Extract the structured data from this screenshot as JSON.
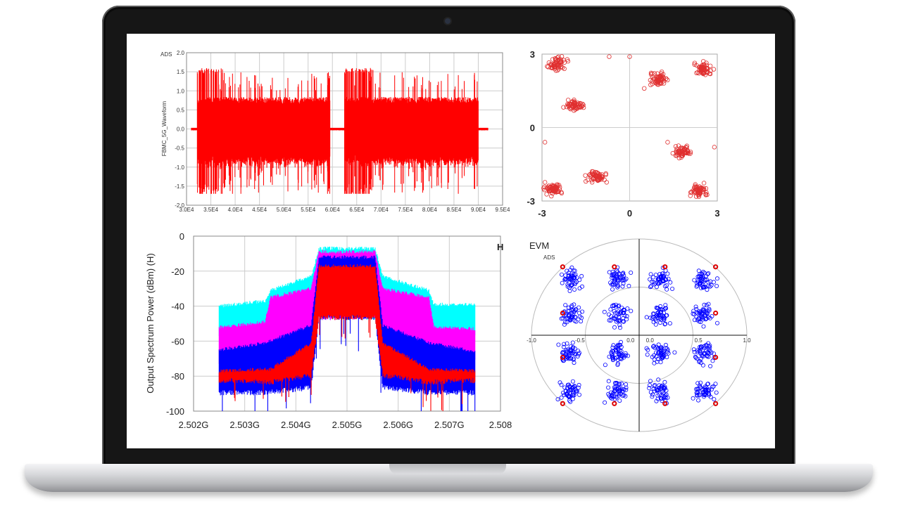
{
  "device": {
    "type": "laptop"
  },
  "chart_data": [
    {
      "type": "line",
      "watermark": "ADS",
      "ylabel": "FBMC_5G_Waveform",
      "xlabel": "",
      "xlim": [
        30000,
        95000
      ],
      "ylim": [
        -2.0,
        2.0
      ],
      "x_ticks": [
        "3.0E4",
        "3.5E4",
        "4.0E4",
        "4.5E4",
        "5.0E4",
        "5.5E4",
        "6.0E4",
        "6.5E4",
        "7.0E4",
        "7.5E4",
        "8.0E4",
        "8.5E4",
        "9.0E4",
        "9.5E4"
      ],
      "y_ticks": [
        "2.0",
        "1.5",
        "1.0",
        "0.5",
        "0.0",
        "-0.5",
        "-1.0",
        "-1.5",
        "-2.0"
      ],
      "grid": true,
      "color": "#ff0000",
      "bursts": [
        [
          32200,
          59500
        ],
        [
          62500,
          90000
        ]
      ],
      "typical_amplitude": 0.8,
      "peak_max": 1.6,
      "peak_min": -1.7,
      "idle_range": [
        31000,
        92000
      ]
    },
    {
      "type": "scatter",
      "xlim": [
        -3,
        3
      ],
      "ylim": [
        -3,
        3
      ],
      "x_ticks": [
        "-3",
        "0",
        "3"
      ],
      "y_ticks": [
        "3",
        "0",
        "-3"
      ],
      "color": "#e03030",
      "marker": "circle-open",
      "clusters": [
        [
          -2.5,
          2.6
        ],
        [
          -1.9,
          0.95
        ],
        [
          1.0,
          2.0
        ],
        [
          2.55,
          2.4
        ],
        [
          1.8,
          -1.0
        ],
        [
          2.4,
          -2.6
        ],
        [
          -1.1,
          -2.0
        ],
        [
          -2.6,
          -2.5
        ]
      ],
      "outliers": [
        [
          -0.7,
          2.9
        ],
        [
          0,
          2.9
        ],
        [
          2.9,
          -0.8
        ],
        [
          -2.9,
          -0.6
        ],
        [
          -1.5,
          -2.2
        ],
        [
          0.5,
          1.6
        ],
        [
          1.3,
          -0.6
        ]
      ]
    },
    {
      "type": "area",
      "ylabel": "Output Spectrum Power (dBm)  (H)",
      "xlabel": "",
      "marker_label": "H",
      "marker_color": "#33cc33",
      "xlim": [
        2.502,
        2.508
      ],
      "ylim": [
        -100,
        0
      ],
      "x_ticks": [
        "2.502G",
        "2.503G",
        "2.504G",
        "2.505G",
        "2.506G",
        "2.507G",
        "2.508"
      ],
      "y_ticks": [
        "0",
        "-20",
        "-40",
        "-60",
        "-80",
        "-100"
      ],
      "grid": true,
      "series": [
        {
          "color": "#00ffff",
          "envelope": [
            [
              2.5025,
              -41,
              -55
            ],
            [
              2.5034,
              -38,
              -55
            ],
            [
              2.5035,
              -32,
              -55
            ],
            [
              2.5043,
              -24,
              -50
            ],
            [
              2.50445,
              -8,
              -45
            ],
            [
              2.50555,
              -8,
              -45
            ],
            [
              2.5057,
              -24,
              -50
            ],
            [
              2.5066,
              -32,
              -55
            ],
            [
              2.5067,
              -40,
              -55
            ],
            [
              2.5075,
              -40,
              -55
            ]
          ]
        },
        {
          "color": "#ff00ff",
          "envelope": [
            [
              2.5025,
              -53,
              -70
            ],
            [
              2.5034,
              -50,
              -70
            ],
            [
              2.5035,
              -36,
              -70
            ],
            [
              2.5043,
              -31,
              -60
            ],
            [
              2.50445,
              -10,
              -45
            ],
            [
              2.50555,
              -10,
              -45
            ],
            [
              2.5057,
              -31,
              -60
            ],
            [
              2.5066,
              -36,
              -70
            ],
            [
              2.5067,
              -53,
              -70
            ],
            [
              2.5075,
              -54,
              -70
            ]
          ]
        },
        {
          "color": "#0000ff",
          "envelope": [
            [
              2.5025,
              -66,
              -88
            ],
            [
              2.5034,
              -62,
              -88
            ],
            [
              2.5043,
              -52,
              -85
            ],
            [
              2.50445,
              -13,
              -45
            ],
            [
              2.50555,
              -13,
              -45
            ],
            [
              2.5057,
              -52,
              -85
            ],
            [
              2.5066,
              -62,
              -88
            ],
            [
              2.5075,
              -67,
              -88
            ]
          ]
        },
        {
          "color": "#ff0000",
          "envelope": [
            [
              2.5025,
              -78,
              -81
            ],
            [
              2.5035,
              -77,
              -82
            ],
            [
              2.5043,
              -62,
              -78
            ],
            [
              2.50445,
              -18,
              -45
            ],
            [
              2.50555,
              -18,
              -45
            ],
            [
              2.5057,
              -62,
              -78
            ],
            [
              2.5066,
              -77,
              -82
            ],
            [
              2.5075,
              -78,
              -81
            ]
          ]
        }
      ]
    },
    {
      "type": "scatter",
      "title": "EVM",
      "watermark": "ADS",
      "polar": true,
      "xlim": [
        -1.0,
        1.0
      ],
      "ylim": [
        -1.0,
        1.0
      ],
      "x_ticks": [
        "-1.0",
        "-0.5",
        "0.0",
        "0.0",
        "0.5",
        "1.0"
      ],
      "measured_color": "#0000ff",
      "reference_color": "#dd0000",
      "measured_cluster_centers_x": [
        -0.64,
        -0.2,
        0.2,
        0.6
      ],
      "measured_cluster_centers_y": [
        0.58,
        0.21,
        -0.19,
        -0.58
      ],
      "reference_points_x": [
        -0.71,
        -0.23,
        0.24,
        0.71
      ],
      "reference_points_y": [
        0.71,
        0.23,
        -0.23,
        -0.71
      ]
    }
  ]
}
